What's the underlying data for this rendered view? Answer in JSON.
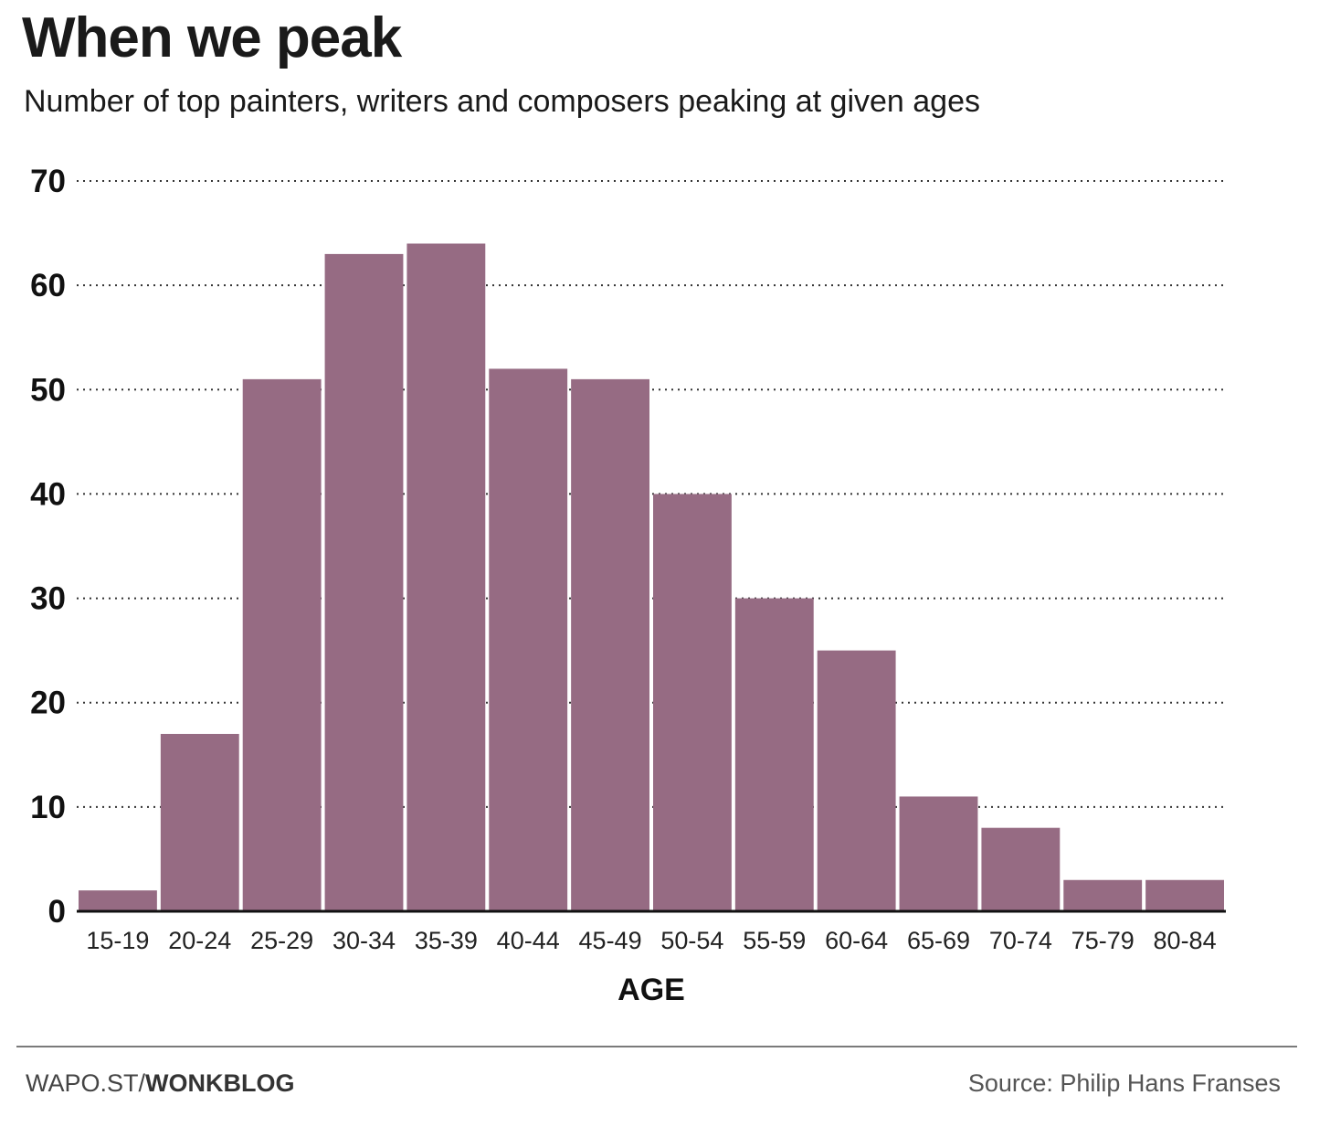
{
  "header": {
    "title": "When we peak",
    "subtitle": "Number of top painters, writers and composers peaking at given ages"
  },
  "chart_data": {
    "type": "bar",
    "title": "When we peak",
    "subtitle": "Number of top painters, writers and composers peaking at given ages",
    "xlabel": "AGE",
    "ylabel": "",
    "categories": [
      "15-19",
      "20-24",
      "25-29",
      "30-34",
      "35-39",
      "40-44",
      "45-49",
      "50-54",
      "55-59",
      "60-64",
      "65-69",
      "70-74",
      "75-79",
      "80-84"
    ],
    "values": [
      2,
      17,
      51,
      63,
      64,
      52,
      51,
      40,
      30,
      25,
      11,
      8,
      3,
      3
    ],
    "ylim": [
      0,
      70
    ],
    "yticks": [
      0,
      10,
      20,
      30,
      40,
      50,
      60,
      70
    ],
    "grid": "horizontal-dotted",
    "bar_color": "#966b83"
  },
  "footer": {
    "left_prefix": "WAPO.ST/",
    "left_brand": "WONKBLOG",
    "source": "Source: Philip Hans Franses"
  }
}
